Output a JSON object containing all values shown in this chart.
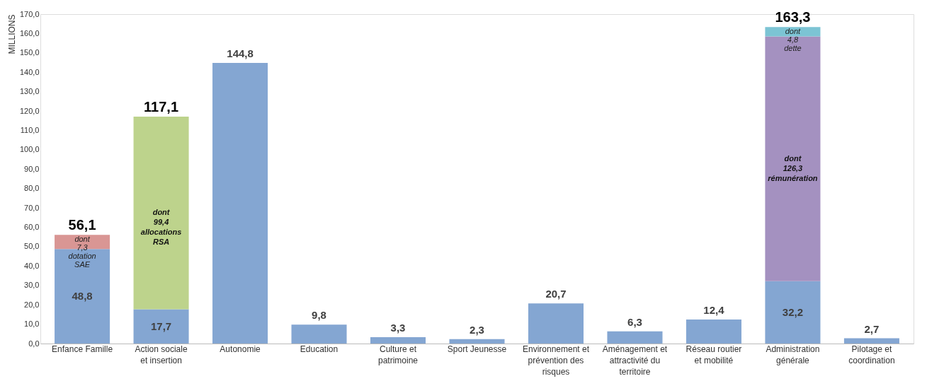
{
  "chart_data": {
    "type": "bar",
    "stacked": true,
    "ylabel": "MILLIONS",
    "categories": [
      "Enfance Famille",
      "Action sociale et insertion",
      "Autonomie",
      "Education",
      "Culture et patrimoine",
      "Sport Jeunesse",
      "Environnement et prévention des risques",
      "Aménagement et attractivité du territoire",
      "Réseau routier et mobilité",
      "Administration générale",
      "Pilotage et coordination"
    ],
    "series": [
      {
        "color": "#84a6d2",
        "values": [
          48.8,
          17.7,
          144.8,
          9.8,
          3.3,
          2.3,
          20.7,
          6.3,
          12.4,
          32.2,
          2.7
        ],
        "value_labels": [
          "48,8",
          "17,7",
          "144,8",
          "9,8",
          "3,3",
          "2,3",
          "20,7",
          "6,3",
          "12,4",
          "32,2",
          "2,7"
        ]
      },
      {
        "color": "#d99694",
        "values": [
          7.3,
          null,
          null,
          null,
          null,
          null,
          null,
          null,
          null,
          null,
          null
        ],
        "value_labels": [
          "dont 7,3 dotation SAE",
          null,
          null,
          null,
          null,
          null,
          null,
          null,
          null,
          null,
          null
        ]
      },
      {
        "color": "#bdd38c",
        "values": [
          null,
          99.4,
          null,
          null,
          null,
          null,
          null,
          null,
          null,
          null,
          null
        ],
        "value_labels": [
          null,
          "dont 99,4 allocations RSA",
          null,
          null,
          null,
          null,
          null,
          null,
          null,
          null,
          null
        ]
      },
      {
        "color": "#a491c0",
        "values": [
          null,
          null,
          null,
          null,
          null,
          null,
          null,
          null,
          null,
          126.3,
          null
        ],
        "value_labels": [
          null,
          null,
          null,
          null,
          null,
          null,
          null,
          null,
          null,
          "dont 126,3 rémunération",
          null
        ]
      },
      {
        "color": "#7cc4d4",
        "values": [
          null,
          null,
          null,
          null,
          null,
          null,
          null,
          null,
          null,
          4.8,
          null
        ],
        "value_labels": [
          null,
          null,
          null,
          null,
          null,
          null,
          null,
          null,
          null,
          "dont 4,8 dette",
          null
        ]
      }
    ],
    "totals": [
      "56,1",
      "117,1",
      null,
      null,
      null,
      null,
      null,
      null,
      null,
      "163,3",
      null
    ],
    "ylim": [
      0,
      170
    ],
    "yticks": [
      {
        "value": 0,
        "label": "0,0"
      },
      {
        "value": 10,
        "label": "10,0"
      },
      {
        "value": 20,
        "label": "20,0"
      },
      {
        "value": 30,
        "label": "30,0"
      },
      {
        "value": 40,
        "label": "40,0"
      },
      {
        "value": 50,
        "label": "50,0"
      },
      {
        "value": 60,
        "label": "60,0"
      },
      {
        "value": 70,
        "label": "70,0"
      },
      {
        "value": 80,
        "label": "80,0"
      },
      {
        "value": 90,
        "label": "90,0"
      },
      {
        "value": 100,
        "label": "100,0"
      },
      {
        "value": 110,
        "label": "110,0"
      },
      {
        "value": 120,
        "label": "120,0"
      },
      {
        "value": 130,
        "label": "130,0"
      },
      {
        "value": 140,
        "label": "140,0"
      },
      {
        "value": 150,
        "label": "150,0"
      },
      {
        "value": 160,
        "label": "160,0"
      },
      {
        "value": 170,
        "label": "170,0"
      }
    ],
    "grid": false
  }
}
